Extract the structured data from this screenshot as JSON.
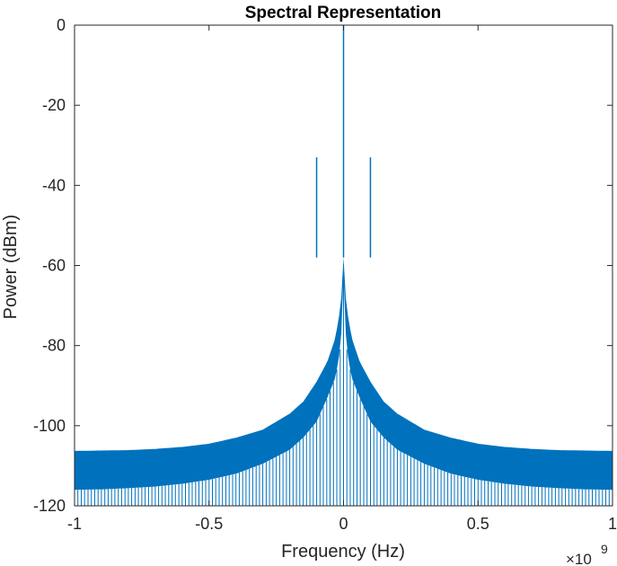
{
  "chart_data": {
    "type": "line",
    "title": "Spectral Representation",
    "xlabel": "Frequency (Hz)",
    "ylabel": "Power (dBm)",
    "x_exponent_label": "×10",
    "x_exponent_power": "9",
    "xlim": [
      -1,
      1
    ],
    "ylim": [
      -120,
      0
    ],
    "xticks": [
      -1,
      -0.5,
      0,
      0.5,
      1
    ],
    "xtick_labels": [
      "-1",
      "-0.5",
      "0",
      "0.5",
      "1"
    ],
    "yticks": [
      0,
      -20,
      -40,
      -60,
      -80,
      -100,
      -120
    ],
    "ytick_labels": [
      "0",
      "-20",
      "-40",
      "-60",
      "-80",
      "-100",
      "-120"
    ],
    "grid": false,
    "color": "#0072BD",
    "series": [
      {
        "peaks": [
          {
            "x": 0,
            "y": 0
          },
          {
            "x": -0.1,
            "y": -33
          },
          {
            "x": 0.1,
            "y": -33
          }
        ],
        "upper_envelope": {
          "x": [
            0,
            0.01,
            0.03,
            0.06,
            0.1,
            0.15,
            0.2,
            0.3,
            0.4,
            0.5,
            0.6,
            0.7,
            0.8,
            0.9,
            1.0
          ],
          "y": [
            -58,
            -70,
            -78,
            -84,
            -89,
            -94,
            -97,
            -101,
            -103,
            -104.5,
            -105.3,
            -105.8,
            -106.1,
            -106.2,
            -106.3
          ]
        },
        "lower_envelope": {
          "x": [
            0,
            0.01,
            0.03,
            0.06,
            0.1,
            0.15,
            0.2,
            0.3,
            0.4,
            0.5,
            0.6,
            0.7,
            0.8,
            0.9,
            1.0
          ],
          "y": [
            -62,
            -80,
            -88,
            -93,
            -99,
            -103,
            -106,
            -109.5,
            -112,
            -113.5,
            -114.5,
            -115.2,
            -115.6,
            -115.9,
            -116
          ]
        },
        "spike_floor": -120
      }
    ]
  }
}
